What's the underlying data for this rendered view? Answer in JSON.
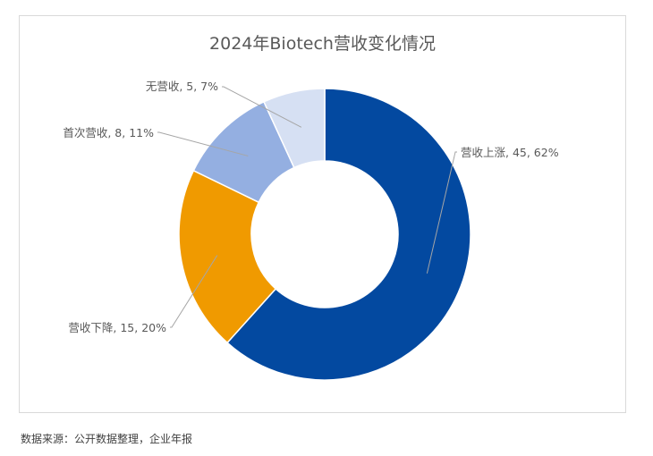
{
  "chart_data": {
    "type": "pie",
    "title": "2024年Biotech营收变化情况",
    "categories": [
      "营收上涨",
      "营收下降",
      "首次营收",
      "无营收"
    ],
    "values": [
      45,
      15,
      8,
      5
    ],
    "percents": [
      "62%",
      "20%",
      "11%",
      "7%"
    ],
    "labels": [
      "营收上涨, 45, 62%",
      "营收下降, 15, 20%",
      "首次营收, 8, 11%",
      "无营收, 5, 7%"
    ],
    "colors": [
      "#0349A0",
      "#F09A00",
      "#94AFE1",
      "#D6E0F3"
    ],
    "donut": true,
    "legend": "none"
  },
  "source": "数据来源：公开数据整理，企业年报"
}
